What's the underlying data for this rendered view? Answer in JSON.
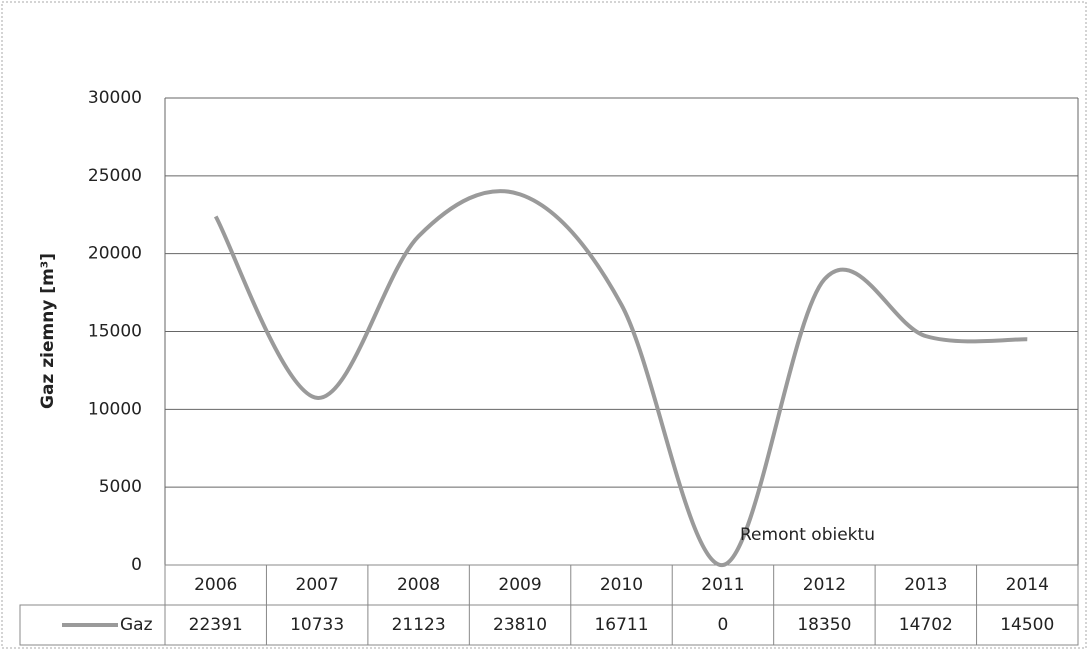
{
  "chart_data": {
    "type": "line",
    "y_label": "Gaz ziemny [m³]",
    "categories": [
      "2006",
      "2007",
      "2008",
      "2009",
      "2010",
      "2011",
      "2012",
      "2013",
      "2014"
    ],
    "series": [
      {
        "name": "Gaz",
        "color": "#9a9a9a",
        "values": [
          22391,
          10733,
          21123,
          23810,
          16711,
          0,
          18350,
          14702,
          14500
        ]
      }
    ],
    "ylim": [
      0,
      30000
    ],
    "yticks": [
      0,
      5000,
      10000,
      15000,
      20000,
      25000,
      30000
    ],
    "grid": true,
    "smooth": true,
    "annotation": "Remont obiektu"
  }
}
